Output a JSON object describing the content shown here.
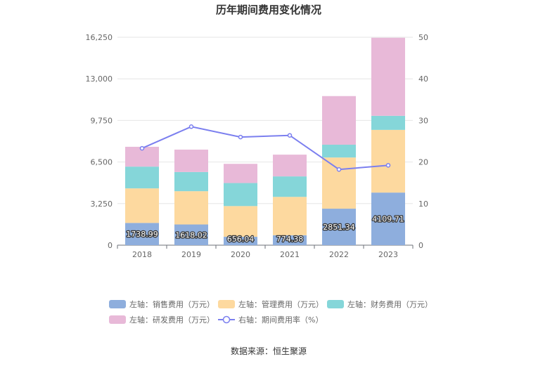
{
  "chart_data": {
    "type": "bar",
    "title": "历年期间费用变化情况",
    "categories": [
      "2018",
      "2019",
      "2020",
      "2021",
      "2022",
      "2023"
    ],
    "left_axis": {
      "min": 0,
      "max": 16250,
      "ticks": [
        "0",
        "3,250",
        "6,500",
        "9,750",
        "13,000",
        "16,250"
      ]
    },
    "right_axis": {
      "min": 0,
      "max": 50,
      "ticks": [
        "0",
        "10",
        "20",
        "30",
        "40",
        "50"
      ]
    },
    "series": [
      {
        "name": "左轴：销售费用（万元）",
        "type": "bar",
        "axis": "left",
        "color": "#8eaedd",
        "values": [
          1738.99,
          1618.02,
          656.04,
          774.38,
          2851.34,
          4109.71
        ]
      },
      {
        "name": "左轴：管理费用（万元）",
        "type": "bar",
        "axis": "left",
        "color": "#fdd99f",
        "values": [
          2700,
          2600,
          2400,
          3000,
          4000,
          4900
        ]
      },
      {
        "name": "左轴：财务费用（万元）",
        "type": "bar",
        "axis": "left",
        "color": "#85d6d9",
        "values": [
          1700,
          1500,
          1800,
          1600,
          1000,
          1100
        ]
      },
      {
        "name": "左轴：研发费用（万元）",
        "type": "bar",
        "axis": "left",
        "color": "#e8b9d8",
        "values": [
          1550,
          1750,
          1500,
          1700,
          3800,
          6100
        ]
      },
      {
        "name": "右轴：期间费用率（%）",
        "type": "line",
        "axis": "right",
        "color": "#7b7fef",
        "values": [
          23.3,
          28.5,
          26.0,
          26.4,
          18.2,
          19.2
        ]
      }
    ],
    "data_labels": [
      "1738.99",
      "1618.02",
      "656.04",
      "774.38",
      "2851.34",
      "4109.71"
    ]
  },
  "source_text": "数据来源：恒生聚源"
}
